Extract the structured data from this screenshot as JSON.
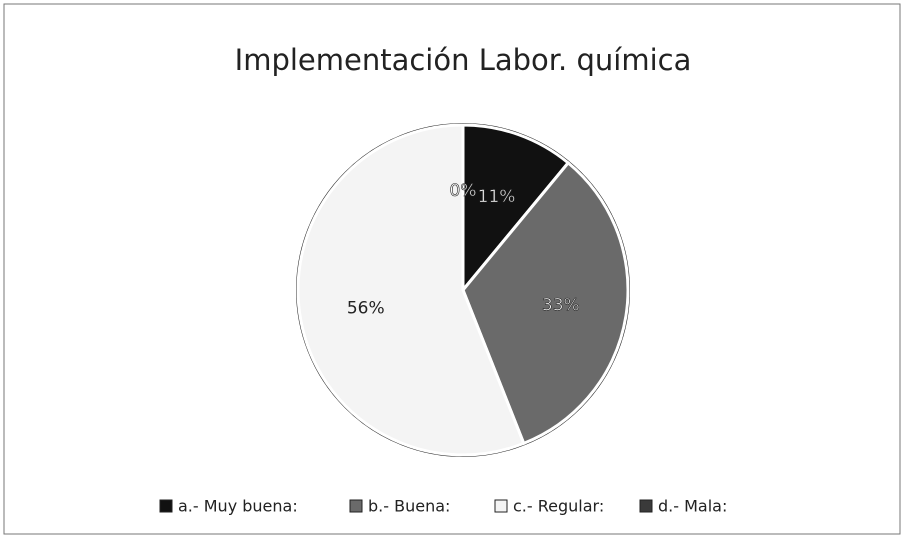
{
  "chart_data": {
    "type": "pie",
    "title": "Implementación Labor. química",
    "categories": [
      "a.- Muy buena:",
      "b.- Buena:",
      "c.- Regular:",
      "d.- Mala:"
    ],
    "values": [
      11,
      33,
      56,
      0
    ],
    "value_labels": [
      "11%",
      "33%",
      "56%",
      "0%"
    ],
    "colors": [
      "#111111",
      "#6a6a6a",
      "#f4f4f4",
      "#3a3a3a"
    ],
    "legend": "bottom"
  }
}
